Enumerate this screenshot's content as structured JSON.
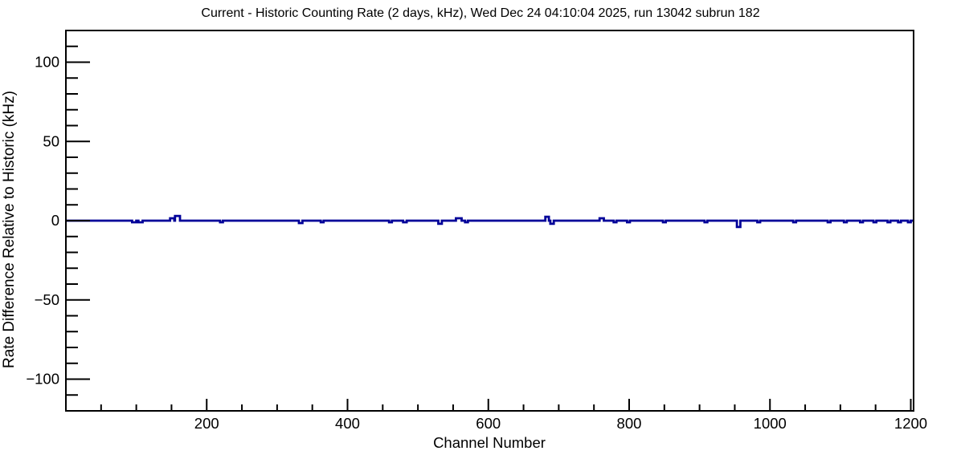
{
  "window": {
    "background_color": "#ffffff"
  },
  "chart_data": {
    "type": "line",
    "title": "Current - Historic Counting Rate (2 days, kHz), Wed Dec 24 04:10:04 2025, run 13042 subrun 182",
    "xlabel": "Channel Number",
    "ylabel": "Rate Difference Relative to Historic (kHz)",
    "xlim": [
      0,
      1204
    ],
    "ylim": [
      -120,
      120
    ],
    "x_major_ticks": [
      200,
      400,
      600,
      800,
      1000,
      1200
    ],
    "x_minor_step": 50,
    "y_major_ticks": [
      100,
      50,
      0,
      -50,
      -100
    ],
    "y_minor_step": 10,
    "grid": false,
    "legend": false,
    "frame_color": "#000000",
    "tick_color": "#000000",
    "line_color": "#000099",
    "run_info": {
      "run": "13042",
      "subrun": "182",
      "timestamp": "Wed Dec 24 04:10:04 2025"
    },
    "series": [
      {
        "name": "current-minus-historic-rate",
        "baseline_khz": 0,
        "spikes_khz": [
          {
            "ch": 94,
            "w": 6,
            "v": -1
          },
          {
            "ch": 103,
            "w": 6,
            "v": -1
          },
          {
            "ch": 148,
            "w": 6,
            "v": 1.5
          },
          {
            "ch": 155,
            "w": 7,
            "v": 3
          },
          {
            "ch": 219,
            "w": 4,
            "v": -1
          },
          {
            "ch": 331,
            "w": 5,
            "v": -1.5
          },
          {
            "ch": 362,
            "w": 4,
            "v": -1
          },
          {
            "ch": 459,
            "w": 4,
            "v": -1
          },
          {
            "ch": 479,
            "w": 5,
            "v": -1
          },
          {
            "ch": 529,
            "w": 5,
            "v": -2
          },
          {
            "ch": 554,
            "w": 8,
            "v": 1.5
          },
          {
            "ch": 567,
            "w": 4,
            "v": -1
          },
          {
            "ch": 681,
            "w": 5,
            "v": 2.5
          },
          {
            "ch": 688,
            "w": 5,
            "v": -2
          },
          {
            "ch": 758,
            "w": 6,
            "v": 1.5
          },
          {
            "ch": 778,
            "w": 4,
            "v": -1
          },
          {
            "ch": 797,
            "w": 4,
            "v": -1
          },
          {
            "ch": 848,
            "w": 4,
            "v": -1
          },
          {
            "ch": 907,
            "w": 4,
            "v": -1
          },
          {
            "ch": 953,
            "w": 5,
            "v": -4
          },
          {
            "ch": 982,
            "w": 4,
            "v": -1
          },
          {
            "ch": 1033,
            "w": 4,
            "v": -1
          },
          {
            "ch": 1082,
            "w": 4,
            "v": -1
          },
          {
            "ch": 1105,
            "w": 4,
            "v": -1
          },
          {
            "ch": 1128,
            "w": 4,
            "v": -1
          },
          {
            "ch": 1147,
            "w": 4,
            "v": -1
          },
          {
            "ch": 1167,
            "w": 4,
            "v": -1
          },
          {
            "ch": 1182,
            "w": 4,
            "v": -1
          },
          {
            "ch": 1196,
            "w": 4,
            "v": -1
          }
        ]
      }
    ]
  }
}
